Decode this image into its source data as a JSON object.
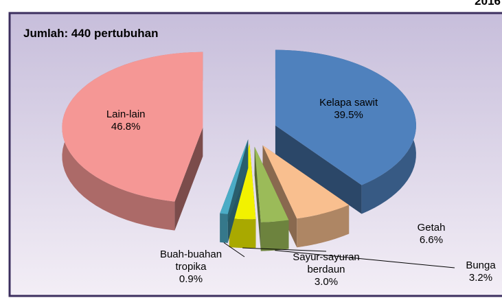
{
  "chart_data": {
    "type": "pie",
    "title": "Jumlah: 440 pertubuhan",
    "corner_label": "2016",
    "categories": [
      "Kelapa sawit",
      "Getah",
      "Bunga",
      "Sayur-sayuran berdaun",
      "Buah-buahan tropika",
      "Lain-lain"
    ],
    "values": [
      39.5,
      6.6,
      3.2,
      3.0,
      0.9,
      46.8
    ],
    "value_labels": [
      "39.5%",
      "6.6%",
      "3.2%",
      "3.0%",
      "0.9%",
      "46.8%"
    ],
    "colors": [
      "#4f81bd",
      "#f9bf8f",
      "#9bbb59",
      "#f2f200",
      "#4bacc6",
      "#f59795"
    ]
  }
}
